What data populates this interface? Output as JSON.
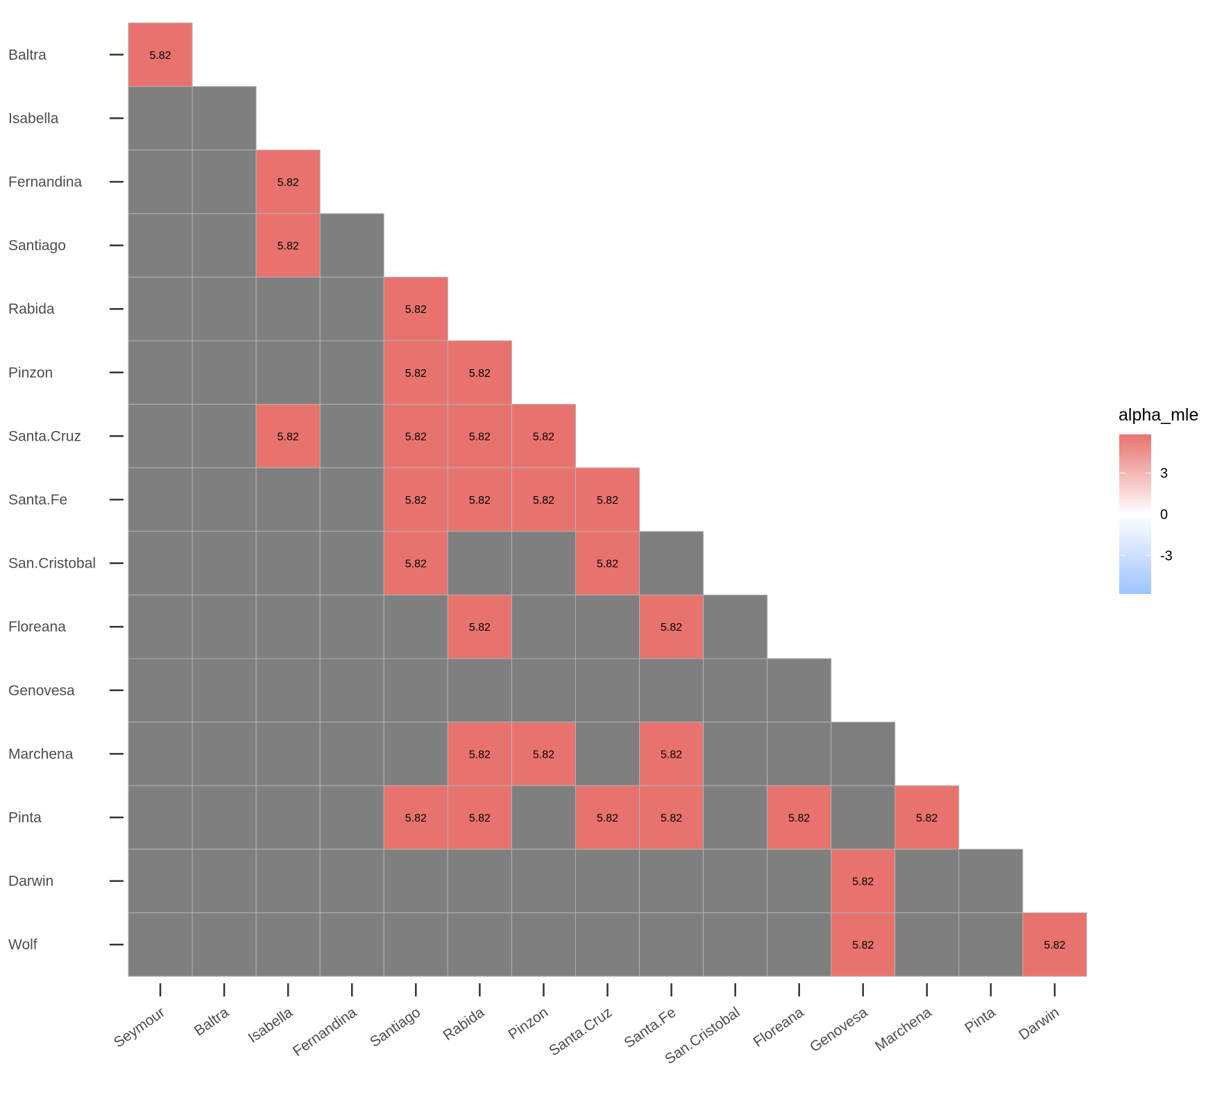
{
  "chart_data": {
    "type": "heatmap",
    "title": "",
    "xlabel": "",
    "ylabel": "",
    "x_categories": [
      "Seymour",
      "Baltra",
      "Isabella",
      "Fernandina",
      "Santiago",
      "Rabida",
      "Pinzon",
      "Santa.Cruz",
      "Santa.Fe",
      "San.Cristobal",
      "Floreana",
      "Genovesa",
      "Marchena",
      "Pinta",
      "Darwin"
    ],
    "y_categories": [
      "Baltra",
      "Isabella",
      "Fernandina",
      "Santiago",
      "Rabida",
      "Pinzon",
      "Santa.Cruz",
      "Santa.Fe",
      "San.Cristobal",
      "Floreana",
      "Genovesa",
      "Marchena",
      "Pinta",
      "Darwin",
      "Wolf"
    ],
    "layout": "lower-triangle",
    "missing_color": "#7f7f7f",
    "values": [
      [
        5.82
      ],
      [
        null,
        null
      ],
      [
        null,
        null,
        5.82
      ],
      [
        null,
        null,
        5.82,
        null
      ],
      [
        null,
        null,
        null,
        null,
        5.82
      ],
      [
        null,
        null,
        null,
        null,
        5.82,
        5.82
      ],
      [
        null,
        null,
        5.82,
        null,
        5.82,
        5.82,
        5.82
      ],
      [
        null,
        null,
        null,
        null,
        5.82,
        5.82,
        5.82,
        5.82
      ],
      [
        null,
        null,
        null,
        null,
        5.82,
        null,
        null,
        5.82,
        null
      ],
      [
        null,
        null,
        null,
        null,
        null,
        5.82,
        null,
        null,
        5.82,
        null
      ],
      [
        null,
        null,
        null,
        null,
        null,
        null,
        null,
        null,
        null,
        null,
        null
      ],
      [
        null,
        null,
        null,
        null,
        null,
        5.82,
        5.82,
        null,
        5.82,
        null,
        null,
        null
      ],
      [
        null,
        null,
        null,
        null,
        5.82,
        5.82,
        null,
        5.82,
        5.82,
        null,
        5.82,
        null,
        5.82
      ],
      [
        null,
        null,
        null,
        null,
        null,
        null,
        null,
        null,
        null,
        null,
        null,
        5.82,
        null,
        null
      ],
      [
        null,
        null,
        null,
        null,
        null,
        null,
        null,
        null,
        null,
        null,
        null,
        5.82,
        null,
        null,
        5.82
      ]
    ],
    "legend": {
      "title": "alpha_mle",
      "position": "right",
      "ticks": [
        3,
        0,
        -3
      ],
      "tick_labels": [
        "3",
        "0",
        "-3"
      ],
      "limits": [
        -5.82,
        5.82
      ],
      "low_color": "#9dc3ff",
      "mid_color": "#ffffff",
      "high_color": "#e8736e"
    }
  }
}
